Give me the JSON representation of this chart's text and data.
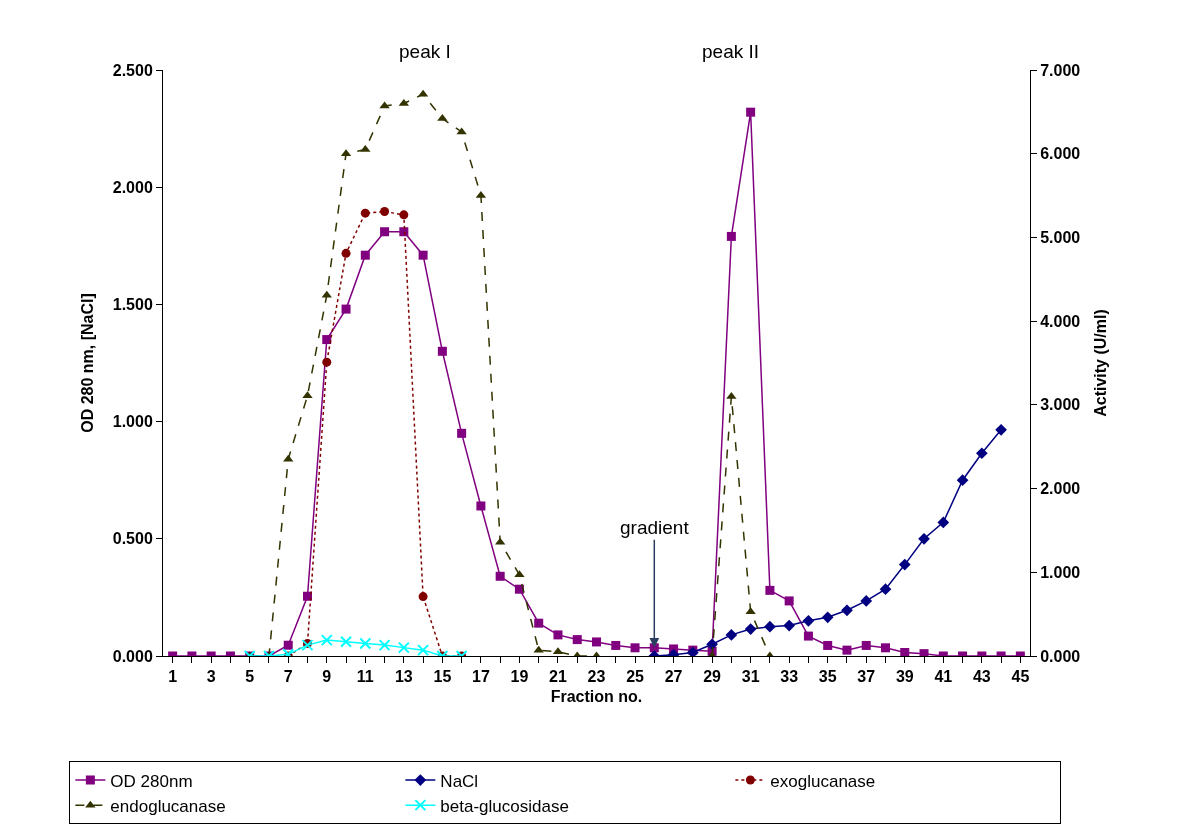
{
  "chart_data": {
    "type": "line",
    "xlabel": "Fraction no.",
    "ylabel": "OD 280 nm, [NaCl]",
    "y2label": "Activity (U/ml)",
    "x": [
      1,
      2,
      3,
      4,
      5,
      6,
      7,
      8,
      9,
      10,
      11,
      12,
      13,
      14,
      15,
      16,
      17,
      18,
      19,
      20,
      21,
      22,
      23,
      24,
      25,
      26,
      27,
      28,
      29,
      30,
      31,
      32,
      33,
      34,
      35,
      36,
      37,
      38,
      39,
      40,
      41,
      42,
      43,
      44,
      45
    ],
    "xlim": [
      0.5,
      45.5
    ],
    "xticks": [
      1,
      {
        "value": 2,
        "label": null
      },
      3,
      {
        "value": 4,
        "label": null
      },
      5,
      {
        "value": 6,
        "label": null
      },
      7,
      {
        "value": 8,
        "label": null
      },
      9,
      {
        "value": 10,
        "label": null
      },
      11,
      {
        "value": 12,
        "label": null
      },
      13,
      {
        "value": 14,
        "label": null
      },
      15,
      {
        "value": 16,
        "label": null
      },
      17,
      {
        "value": 18,
        "label": null
      },
      19,
      {
        "value": 20,
        "label": null
      },
      21,
      {
        "value": 22,
        "label": null
      },
      23,
      {
        "value": 24,
        "label": null
      },
      25,
      {
        "value": 26,
        "label": null
      },
      27,
      {
        "value": 28,
        "label": null
      },
      29,
      {
        "value": 30,
        "label": null
      },
      31,
      {
        "value": 32,
        "label": null
      },
      33,
      {
        "value": 34,
        "label": null
      },
      35,
      {
        "value": 36,
        "label": null
      },
      37,
      {
        "value": 38,
        "label": null
      },
      39,
      {
        "value": 40,
        "label": null
      },
      41,
      {
        "value": 42,
        "label": null
      },
      43,
      {
        "value": 44,
        "label": null
      },
      45
    ],
    "ylim": [
      0,
      2.5
    ],
    "yticks": [
      {
        "value": 0,
        "label": "0.000"
      },
      {
        "value": 0.5,
        "label": "0.500"
      },
      {
        "value": 1,
        "label": "1.000"
      },
      {
        "value": 1.5,
        "label": "1.500"
      },
      {
        "value": 2,
        "label": "2.000"
      },
      {
        "value": 2.5,
        "label": "2.500"
      }
    ],
    "y2lim": [
      0,
      7
    ],
    "y2ticks": [
      {
        "value": 0,
        "label": "0.000"
      },
      {
        "value": 1,
        "label": "1.000"
      },
      {
        "value": 2,
        "label": "2.000"
      },
      {
        "value": 3,
        "label": "3.000"
      },
      {
        "value": 4,
        "label": "4.000"
      },
      {
        "value": 5,
        "label": "5.000"
      },
      {
        "value": 6,
        "label": "6.000"
      },
      {
        "value": 7,
        "label": "7.000"
      }
    ],
    "legend": "bottom",
    "series": [
      {
        "name": "OD 280nm",
        "color": "#800080",
        "marker": "square",
        "line_style": "solid",
        "values": [
          0,
          0,
          0,
          0,
          0,
          0,
          0.046,
          0.255,
          1.35,
          1.48,
          1.71,
          1.81,
          1.81,
          1.71,
          1.3,
          0.95,
          0.64,
          0.34,
          0.285,
          0.14,
          0.09,
          0.07,
          0.06,
          0.045,
          0.035,
          0.035,
          0.03,
          0.025,
          0.02,
          1.79,
          2.32,
          0.28,
          0.235,
          0.085,
          0.045,
          0.025,
          0.045,
          0.035,
          0.015,
          0.01,
          0,
          0,
          0,
          0,
          0
        ]
      },
      {
        "name": "NaCl",
        "color": "#000080",
        "marker": "diamond",
        "line_style": "solid",
        "values": [
          null,
          null,
          null,
          null,
          null,
          null,
          null,
          null,
          null,
          null,
          null,
          null,
          null,
          null,
          null,
          null,
          null,
          null,
          null,
          null,
          null,
          null,
          null,
          null,
          null,
          0,
          0.005,
          0.015,
          0.05,
          0.09,
          0.115,
          0.125,
          0.13,
          0.15,
          0.165,
          0.195,
          0.235,
          0.285,
          0.39,
          0.5,
          0.57,
          0.75,
          0.865,
          0.965,
          null
        ]
      },
      {
        "name": "exoglucanase",
        "color": "#800000",
        "marker": "circle",
        "line_style": "dotted",
        "axis": "y2",
        "values": [
          null,
          null,
          null,
          null,
          null,
          null,
          0,
          0.15,
          3.51,
          4.81,
          5.29,
          5.31,
          5.27,
          0.71,
          0,
          0,
          null,
          null,
          null,
          null,
          null,
          null,
          null,
          null,
          null,
          null,
          null,
          null,
          null,
          null,
          null,
          null,
          null,
          null,
          null,
          null,
          null,
          null,
          null,
          null,
          null,
          null,
          null,
          null,
          null
        ]
      },
      {
        "name": "endoglucanase",
        "color": "#333300",
        "marker": "triangle",
        "line_style": "dashed",
        "axis": "y2",
        "values": [
          null,
          null,
          null,
          null,
          0,
          0,
          2.35,
          3.11,
          4.31,
          6.0,
          6.05,
          6.57,
          6.6,
          6.71,
          6.42,
          6.26,
          5.5,
          1.36,
          0.97,
          0.07,
          0.05,
          0,
          0,
          null,
          null,
          null,
          null,
          null,
          0,
          3.1,
          0.53,
          0,
          null,
          null,
          null,
          null,
          null,
          null,
          null,
          null,
          null,
          null,
          null,
          null,
          null
        ]
      },
      {
        "name": "beta-glucosidase",
        "color": "#00ffff",
        "marker": "cross",
        "line_style": "solid",
        "axis": "y2",
        "values": [
          null,
          null,
          null,
          null,
          0,
          0,
          0.02,
          0.13,
          0.19,
          0.17,
          0.15,
          0.13,
          0.1,
          0.07,
          0,
          0,
          null,
          null,
          null,
          null,
          null,
          null,
          null,
          null,
          null,
          null,
          null,
          null,
          null,
          null,
          null,
          null,
          null,
          null,
          null,
          null,
          null,
          null,
          null,
          null,
          null,
          null,
          null,
          null,
          null
        ]
      }
    ],
    "annotations": [
      "peak I",
      "peak II",
      {
        "text": "gradient",
        "x": 26,
        "y": 0.035
      }
    ]
  }
}
